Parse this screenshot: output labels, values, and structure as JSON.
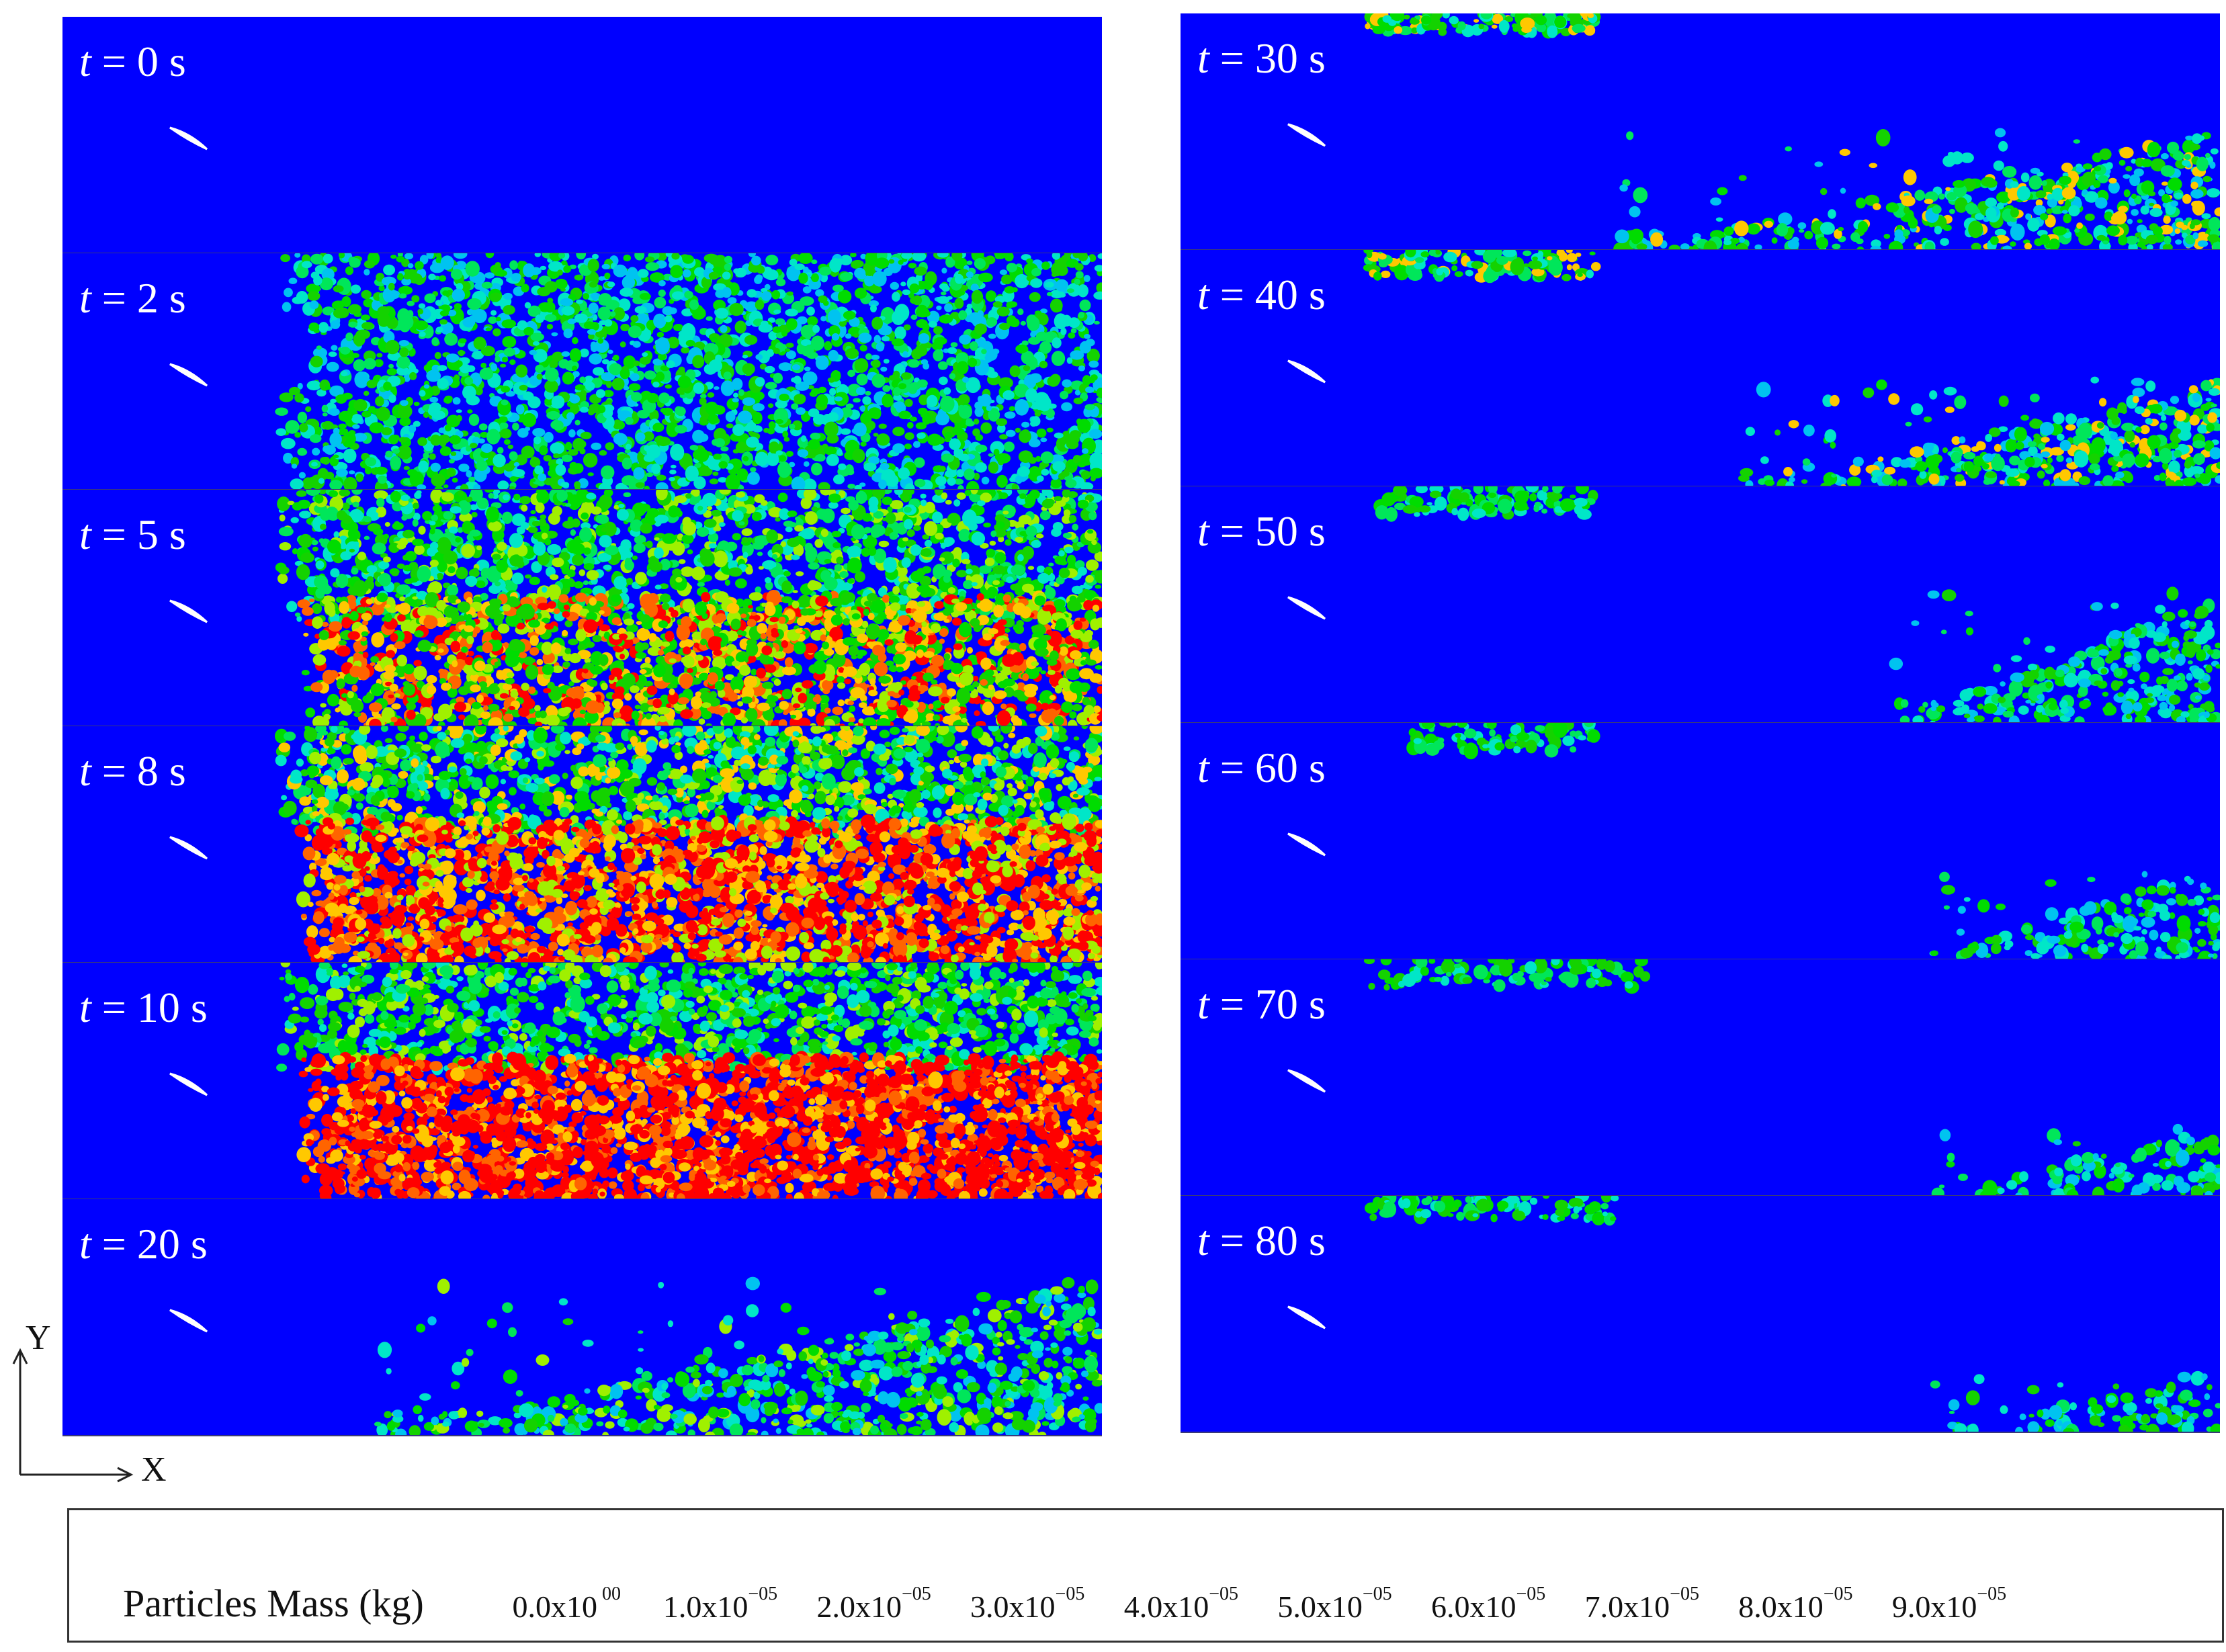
{
  "panels_left": [
    {
      "time": "0"
    },
    {
      "time": "2"
    },
    {
      "time": "5"
    },
    {
      "time": "8"
    },
    {
      "time": "10"
    },
    {
      "time": "20"
    }
  ],
  "panels_right": [
    {
      "time": "30"
    },
    {
      "time": "40"
    },
    {
      "time": "50"
    },
    {
      "time": "60"
    },
    {
      "time": "70"
    },
    {
      "time": "80"
    }
  ],
  "time_var": "t",
  "time_eq": " = ",
  "time_unit": " s",
  "axes": {
    "x": "X",
    "y": "Y"
  },
  "legend": {
    "title": "Particles Mass (kg)",
    "colors": [
      "#0000FF",
      "#0A6AF5",
      "#00C3F0",
      "#00E6C8",
      "#00E65A",
      "#00DC00",
      "#14D200",
      "#A0F000",
      "#FFC800",
      "#FF6400",
      "#FF0000"
    ],
    "ticks": [
      {
        "mant": "0.0x10",
        "exp": " 00"
      },
      {
        "mant": "1.0x10",
        "exp": "−05"
      },
      {
        "mant": "2.0x10",
        "exp": "−05"
      },
      {
        "mant": "3.0x10",
        "exp": "−05"
      },
      {
        "mant": "4.0x10",
        "exp": "−05"
      },
      {
        "mant": "5.0x10",
        "exp": "−05"
      },
      {
        "mant": "6.0x10",
        "exp": "−05"
      },
      {
        "mant": "7.0x10",
        "exp": "−05"
      },
      {
        "mant": "8.0x10",
        "exp": "−05"
      },
      {
        "mant": "9.0x10",
        "exp": "−05"
      }
    ]
  }
}
